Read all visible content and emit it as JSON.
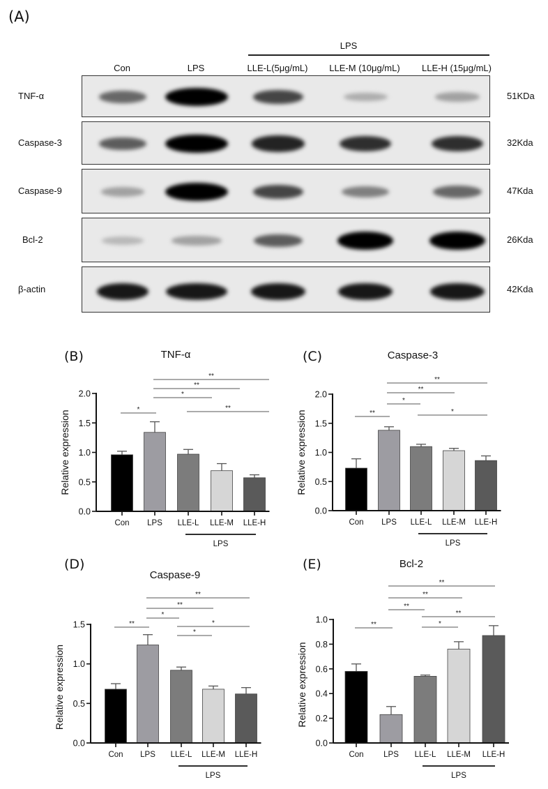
{
  "panel_a": {
    "letter": "(A)",
    "group_label": "LPS",
    "lanes": [
      "Con",
      "LPS",
      "LLE-L(5μg/mL)",
      "LLE-M (10μg/mL)",
      "LLE-H (15μg/mL)"
    ],
    "rows": [
      {
        "protein": "TNF-α",
        "size": "51KDa",
        "intensity": [
          0.55,
          1.0,
          0.7,
          0.25,
          0.3
        ]
      },
      {
        "protein": "Caspase-3",
        "size": "32Kda",
        "intensity": [
          0.6,
          1.0,
          0.85,
          0.8,
          0.8
        ]
      },
      {
        "protein": "Caspase-9",
        "size": "47Kda",
        "intensity": [
          0.3,
          1.0,
          0.7,
          0.45,
          0.55
        ]
      },
      {
        "protein": "Bcl-2",
        "size": "26Kda",
        "intensity": [
          0.2,
          0.3,
          0.6,
          1.0,
          1.0
        ]
      },
      {
        "protein": "β-actin",
        "size": "42Kda",
        "intensity": [
          0.9,
          0.9,
          0.9,
          0.9,
          0.9
        ]
      }
    ]
  },
  "colors": {
    "Con": "#000000",
    "LPS": "#9d9ca2",
    "LLE-L": "#7c7c7c",
    "LLE-M": "#d6d6d6",
    "LLE-H": "#5a5a5a",
    "axis": "#111111",
    "sig_line": "#555555"
  },
  "chart_data": [
    {
      "panel": "(B)",
      "type": "bar",
      "title": "TNF-α",
      "xlabel": "",
      "ylabel": "Relative expression",
      "categories": [
        "Con",
        "LPS",
        "LLE-L",
        "LLE-M",
        "LLE-H"
      ],
      "values": [
        0.96,
        1.34,
        0.97,
        0.69,
        0.57
      ],
      "errors": [
        0.06,
        0.18,
        0.08,
        0.12,
        0.05
      ],
      "ylim": [
        0,
        2.0
      ],
      "yticks": [
        "0.0",
        "0.5",
        "1.0",
        "1.5",
        "2.0"
      ],
      "group_label": "LPS",
      "grid": false,
      "significance": [
        {
          "from": "Con",
          "to": "LPS",
          "label": "*"
        },
        {
          "from": "LPS",
          "to": "LLE-L",
          "label": "*"
        },
        {
          "from": "LPS",
          "to": "LLE-M",
          "label": "**"
        },
        {
          "from": "LPS",
          "to": "LLE-H",
          "label": "**"
        },
        {
          "from": "LLE-L",
          "to": "LLE-H",
          "label": "**"
        }
      ]
    },
    {
      "panel": "(C)",
      "type": "bar",
      "title": "Caspase-3",
      "xlabel": "",
      "ylabel": "Relative expression",
      "categories": [
        "Con",
        "LPS",
        "LLE-L",
        "LLE-M",
        "LLE-H"
      ],
      "values": [
        0.73,
        1.38,
        1.1,
        1.03,
        0.86
      ],
      "errors": [
        0.16,
        0.06,
        0.04,
        0.04,
        0.08
      ],
      "ylim": [
        0,
        2.0
      ],
      "yticks": [
        "0.0",
        "0.5",
        "1.0",
        "1.5",
        "2.0"
      ],
      "group_label": "LPS",
      "grid": false,
      "significance": [
        {
          "from": "Con",
          "to": "LPS",
          "label": "**"
        },
        {
          "from": "LPS",
          "to": "LLE-L",
          "label": "*"
        },
        {
          "from": "LPS",
          "to": "LLE-M",
          "label": "**"
        },
        {
          "from": "LPS",
          "to": "LLE-H",
          "label": "**"
        },
        {
          "from": "LLE-L",
          "to": "LLE-H",
          "label": "*"
        }
      ]
    },
    {
      "panel": "(D)",
      "type": "bar",
      "title": "Caspase-9",
      "xlabel": "",
      "ylabel": "Relative expression",
      "categories": [
        "Con",
        "LPS",
        "LLE-L",
        "LLE-M",
        "LLE-H"
      ],
      "values": [
        0.68,
        1.24,
        0.92,
        0.68,
        0.62
      ],
      "errors": [
        0.07,
        0.13,
        0.04,
        0.04,
        0.08
      ],
      "ylim": [
        0,
        1.5
      ],
      "yticks": [
        "0.0",
        "0.5",
        "1.0",
        "1.5"
      ],
      "group_label": "LPS",
      "grid": false,
      "significance": [
        {
          "from": "Con",
          "to": "LPS",
          "label": "**"
        },
        {
          "from": "LPS",
          "to": "LLE-L",
          "label": "*"
        },
        {
          "from": "LPS",
          "to": "LLE-M",
          "label": "**"
        },
        {
          "from": "LPS",
          "to": "LLE-H",
          "label": "**"
        },
        {
          "from": "LLE-L",
          "to": "LLE-H",
          "label": "*"
        },
        {
          "from": "LLE-L",
          "to": "LLE-M",
          "label": "*"
        }
      ]
    },
    {
      "panel": "(E)",
      "type": "bar",
      "title": "Bcl-2",
      "xlabel": "",
      "ylabel": "Relative expression",
      "categories": [
        "Con",
        "LPS",
        "LLE-L",
        "LLE-M",
        "LLE-H"
      ],
      "values": [
        0.58,
        0.23,
        0.54,
        0.76,
        0.87
      ],
      "errors": [
        0.06,
        0.065,
        0.01,
        0.06,
        0.08
      ],
      "ylim": [
        0,
        1.0
      ],
      "yticks": [
        "0.0",
        "0.2",
        "0.4",
        "0.6",
        "0.8",
        "1.0"
      ],
      "group_label": "LPS",
      "grid": false,
      "significance": [
        {
          "from": "Con",
          "to": "LPS",
          "label": "**"
        },
        {
          "from": "LPS",
          "to": "LLE-L",
          "label": "**"
        },
        {
          "from": "LPS",
          "to": "LLE-M",
          "label": "**"
        },
        {
          "from": "LPS",
          "to": "LLE-H",
          "label": "**"
        },
        {
          "from": "LLE-L",
          "to": "LLE-H",
          "label": "**"
        },
        {
          "from": "LLE-L",
          "to": "LLE-M",
          "label": "*"
        }
      ]
    }
  ]
}
